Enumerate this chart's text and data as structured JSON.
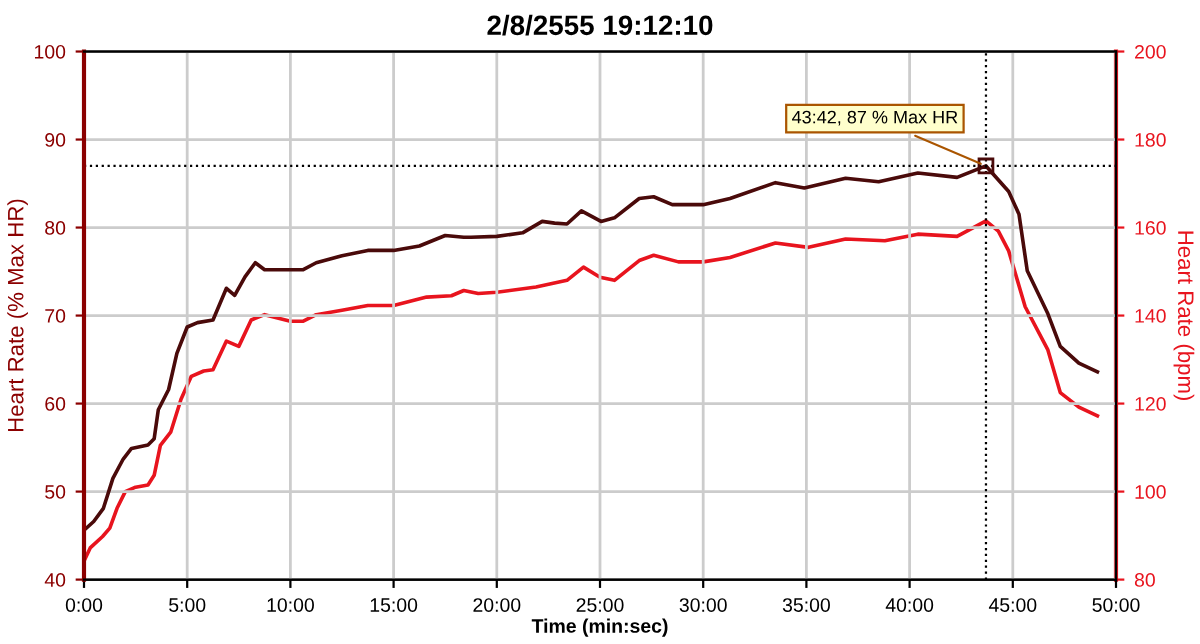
{
  "chart_data": {
    "type": "line",
    "title": "2/8/2555 19:12:10",
    "xlabel": "Time (min:sec)",
    "ylabel": "Heart Rate (% Max HR)",
    "y2label": "Heart Rate (bpm)",
    "xlim": [
      0,
      50
    ],
    "xticks": [
      {
        "value": 0,
        "label": "0:00"
      },
      {
        "value": 5,
        "label": "5:00"
      },
      {
        "value": 10,
        "label": "10:00"
      },
      {
        "value": 15,
        "label": "15:00"
      },
      {
        "value": 20,
        "label": "20:00"
      },
      {
        "value": 25,
        "label": "25:00"
      },
      {
        "value": 30,
        "label": "30:00"
      },
      {
        "value": 35,
        "label": "35:00"
      },
      {
        "value": 40,
        "label": "40:00"
      },
      {
        "value": 45,
        "label": "45:00"
      },
      {
        "value": 50,
        "label": "50:00"
      }
    ],
    "ylim": [
      40,
      100
    ],
    "yticks": [
      40,
      50,
      60,
      70,
      80,
      90,
      100
    ],
    "y2lim": [
      80,
      200
    ],
    "y2ticks": [
      80,
      100,
      120,
      140,
      160,
      180,
      200
    ],
    "grid": true,
    "legend": false,
    "marker": "none",
    "line_style": "solid",
    "series": [
      {
        "color": "#4a0a0a",
        "x": [
          0,
          0.47,
          0.94,
          1.4,
          1.9,
          2.3,
          3.1,
          3.4,
          3.6,
          4.1,
          4.5,
          5.0,
          5.5,
          6.25,
          6.9,
          7.3,
          7.8,
          8.3,
          8.75,
          10.6,
          11.25,
          12.5,
          13.75,
          15,
          16.25,
          17.5,
          18.4,
          18.75,
          20,
          21.25,
          22.2,
          22.8,
          23.4,
          24.1,
          25.05,
          25.7,
          26.9,
          27.6,
          28.5,
          30,
          31.3,
          33.5,
          34.9,
          36.9,
          38.5,
          40.4,
          42.3,
          43.7,
          44.8,
          45.3,
          45.7,
          46.7,
          47.3,
          48.2,
          49.1
        ],
        "values": [
          45.6,
          46.6,
          48.1,
          51.5,
          53.7,
          54.9,
          55.3,
          56,
          59.3,
          61.6,
          65.7,
          68.7,
          69.2,
          69.5,
          73.1,
          72.3,
          74.4,
          76,
          75.2,
          75.2,
          76,
          76.8,
          77.4,
          77.4,
          77.9,
          79.1,
          78.9,
          78.9,
          79,
          79.4,
          80.7,
          80.5,
          80.4,
          81.9,
          80.7,
          81.1,
          83.3,
          83.5,
          82.6,
          82.6,
          83.3,
          85.1,
          84.5,
          85.6,
          85.2,
          86.2,
          85.7,
          87,
          84.1,
          81.5,
          75.1,
          70.2,
          66.5,
          64.6,
          63.6
        ]
      },
      {
        "color": "#e8141e",
        "axis": "y2",
        "x": [
          0,
          0.3,
          0.9,
          1.25,
          1.6,
          2.0,
          2.5,
          3.1,
          3.4,
          3.7,
          4.2,
          4.7,
          5.2,
          5.8,
          6.25,
          6.9,
          7.5,
          8.1,
          8.75,
          10,
          10.6,
          11.25,
          12.5,
          13.75,
          15,
          16.6,
          17.8,
          18.4,
          19.1,
          20,
          21.9,
          23.4,
          24.2,
          25,
          25.7,
          26.9,
          27.6,
          28.8,
          30,
          31.3,
          33.5,
          35.1,
          36.9,
          38.8,
          40.4,
          42.3,
          43.7,
          44.3,
          44.8,
          45.6,
          46.7,
          47.3,
          48.2,
          49.1
        ],
        "values": [
          84.2,
          87.2,
          89.8,
          91.7,
          96.2,
          100,
          101,
          101.5,
          103.7,
          110.5,
          113.5,
          121,
          126.2,
          127.4,
          127.7,
          134.2,
          133,
          139,
          140.2,
          138.7,
          138.7,
          140.2,
          141.2,
          142.3,
          142.3,
          144.2,
          144.5,
          145.7,
          145,
          145.3,
          146.5,
          148,
          151,
          148.7,
          148,
          152.5,
          153.7,
          152.2,
          152.2,
          153.2,
          156.5,
          155.5,
          157.4,
          157,
          158.5,
          158,
          161.5,
          159.2,
          154.7,
          142,
          132.2,
          122.5,
          119.2,
          117.2
        ]
      }
    ],
    "ref_lines": [
      {
        "axis": "y",
        "value": 87,
        "color": "#000000",
        "line_style": "dotted"
      },
      {
        "axis": "x",
        "value": 43.7,
        "color": "#000000",
        "line_style": "dotted"
      }
    ],
    "annotations": [
      {
        "text": "43:42, 87 % Max HR",
        "x": 43.7,
        "y": 87
      }
    ]
  }
}
